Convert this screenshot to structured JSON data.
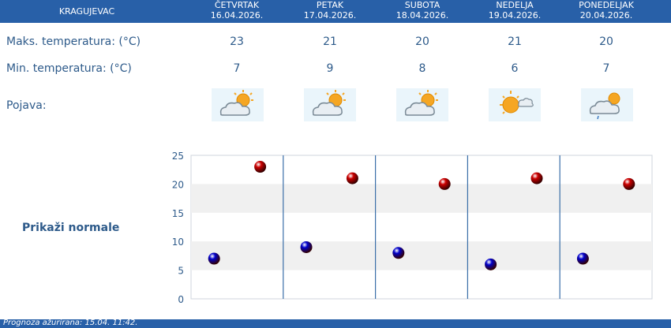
{
  "header": {
    "city": "KRAGUJEVAC",
    "days": [
      {
        "name": "ČETVRTAK",
        "date": "16.04.2026."
      },
      {
        "name": "PETAK",
        "date": "17.04.2026."
      },
      {
        "name": "SUBOTA",
        "date": "18.04.2026."
      },
      {
        "name": "NEDELJA",
        "date": "19.04.2026."
      },
      {
        "name": "PONEDELJAK",
        "date": "20.04.2026."
      }
    ]
  },
  "rows": {
    "max_label": "Maks. temperatura: (°C)",
    "min_label": "Min. temperatura: (°C)",
    "weather_label": "Pojava:",
    "max_values": [
      "23",
      "21",
      "20",
      "21",
      "20"
    ],
    "min_values": [
      "7",
      "9",
      "8",
      "6",
      "7"
    ],
    "weather_icons": [
      "partly-cloudy-icon",
      "partly-cloudy-icon",
      "partly-cloudy-icon",
      "mostly-sunny-icon",
      "cloudy-light-rain-icon"
    ]
  },
  "show_normals_label": "Prikaži normale",
  "chart_data": {
    "type": "scatter",
    "y_ticks": [
      "0",
      "5",
      "10",
      "15",
      "20",
      "25"
    ],
    "ylim": [
      0,
      25
    ],
    "grid": true,
    "series": [
      {
        "values": [
          23,
          21,
          20,
          21,
          20
        ],
        "color": "#cc0000"
      },
      {
        "values": [
          7,
          9,
          8,
          6,
          7
        ],
        "color": "#0000cc"
      }
    ]
  },
  "footer": {
    "text": "Prognoza ažurirana: 15.04. 11:42."
  },
  "colors": {
    "header_bg": "#2860a8",
    "text": "#2d5a8a",
    "max_dot": "#cc0000",
    "min_dot": "#0000cc"
  }
}
